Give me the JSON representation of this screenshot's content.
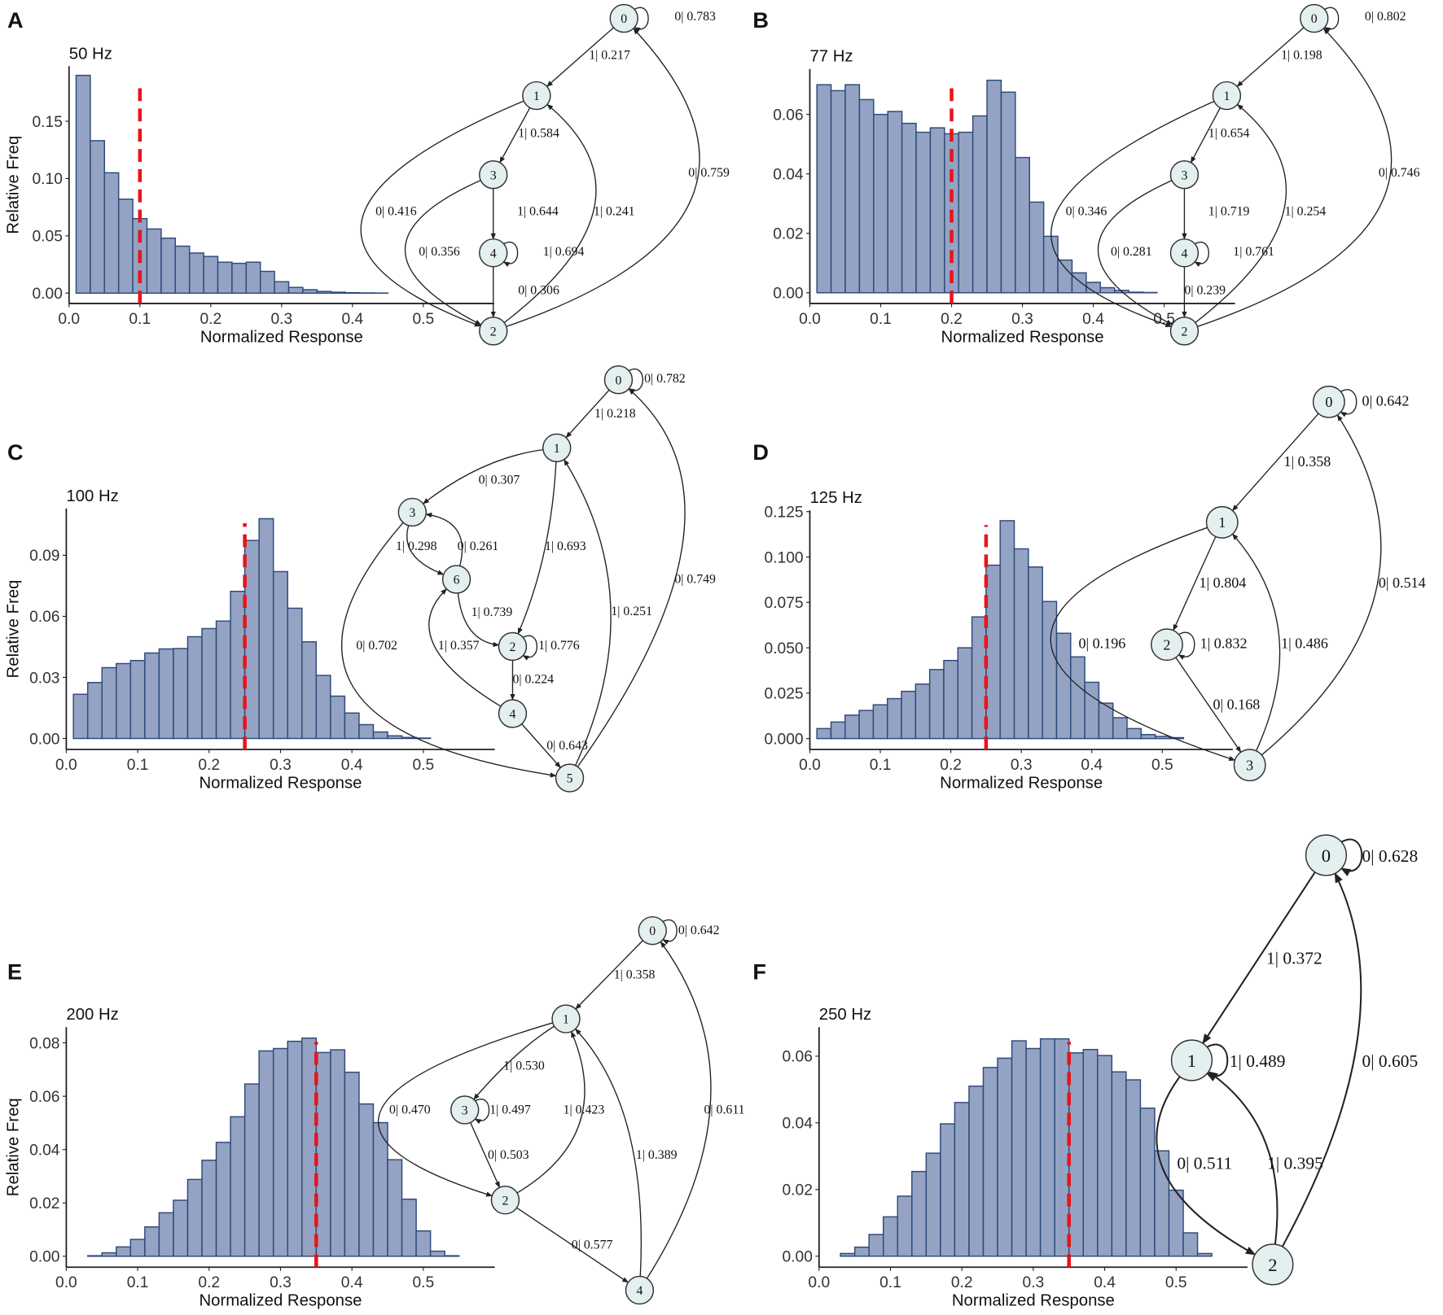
{
  "colors": {
    "bar_fill": "#94a3c4",
    "bar_stroke": "#2f4a7a",
    "threshold": "#e8141c",
    "node_fill": "#e4f0f0",
    "edge": "#222222"
  },
  "chart_data": [
    {
      "type": "bar",
      "letter": "A",
      "title": "50 Hz",
      "xlabel": "Normalized Response",
      "ylabel": "Relative Freq",
      "threshold": 0.1,
      "xlim": [
        0,
        0.6
      ],
      "ylim": [
        -0.009,
        0.198
      ],
      "xticks": [
        0,
        0.1,
        0.2,
        0.3,
        0.4,
        0.5
      ],
      "xtick_labels": [
        "0.0",
        "0.1",
        "0.2",
        "0.3",
        "0.4",
        "0.5"
      ],
      "yticks": [
        0,
        0.05,
        0.1,
        0.15
      ],
      "ytick_labels": [
        "0.00",
        "0.05",
        "0.10",
        "0.15"
      ],
      "bin_start": 0.01,
      "bin_width": 0.02,
      "values": [
        0.19,
        0.133,
        0.105,
        0.082,
        0.065,
        0.056,
        0.048,
        0.041,
        0.035,
        0.032,
        0.027,
        0.026,
        0.027,
        0.019,
        0.01,
        0.005,
        0.003,
        0.0015,
        0.0008,
        0.0004,
        0.0002,
        0.0001,
        0,
        0,
        0,
        0,
        0,
        0,
        0
      ],
      "graph": {
        "nodes": [
          "0",
          "1",
          "2",
          "3",
          "4"
        ],
        "edges": [
          {
            "from": "0",
            "to": "0",
            "label": "0| 0.783"
          },
          {
            "from": "0",
            "to": "1",
            "label": "1| 0.217"
          },
          {
            "from": "1",
            "to": "3",
            "label": "1| 0.584"
          },
          {
            "from": "3",
            "to": "4",
            "label": "1| 0.644"
          },
          {
            "from": "4",
            "to": "4",
            "label": "1| 0.694"
          },
          {
            "from": "4",
            "to": "2",
            "label": "0| 0.306"
          },
          {
            "from": "1",
            "to": "2",
            "label": "0| 0.416"
          },
          {
            "from": "3",
            "to": "2",
            "label": "0| 0.356"
          },
          {
            "from": "2",
            "to": "1",
            "label": "1| 0.241"
          },
          {
            "from": "2",
            "to": "0",
            "label": "0| 0.759"
          }
        ]
      }
    },
    {
      "type": "bar",
      "letter": "B",
      "title": "77 Hz",
      "xlabel": "Normalized Response",
      "ylabel": "",
      "threshold": 0.2,
      "xlim": [
        0,
        0.6
      ],
      "ylim": [
        -0.0036,
        0.0753
      ],
      "xticks": [
        0,
        0.1,
        0.2,
        0.3,
        0.4,
        0.5
      ],
      "xtick_labels": [
        "0.0",
        "0.1",
        "0.2",
        "0.3",
        "0.4",
        "0.5"
      ],
      "yticks": [
        0,
        0.02,
        0.04,
        0.06
      ],
      "ytick_labels": [
        "0.00",
        "0.02",
        "0.04",
        "0.06"
      ],
      "bin_start": 0.01,
      "bin_width": 0.02,
      "values": [
        0.07,
        0.068,
        0.07,
        0.065,
        0.06,
        0.061,
        0.057,
        0.054,
        0.0555,
        0.0535,
        0.054,
        0.0595,
        0.0715,
        0.0675,
        0.0455,
        0.0305,
        0.019,
        0.011,
        0.0067,
        0.0035,
        0.0017,
        0.0008,
        0.0002,
        0.0001,
        0,
        0,
        0,
        0,
        0
      ],
      "graph": {
        "nodes": [
          "0",
          "1",
          "2",
          "3",
          "4"
        ],
        "edges": [
          {
            "from": "0",
            "to": "0",
            "label": "0| 0.802"
          },
          {
            "from": "0",
            "to": "1",
            "label": "1| 0.198"
          },
          {
            "from": "1",
            "to": "3",
            "label": "1| 0.654"
          },
          {
            "from": "3",
            "to": "4",
            "label": "1| 0.719"
          },
          {
            "from": "4",
            "to": "4",
            "label": "1| 0.761"
          },
          {
            "from": "4",
            "to": "2",
            "label": "0| 0.239"
          },
          {
            "from": "1",
            "to": "2",
            "label": "0| 0.346"
          },
          {
            "from": "3",
            "to": "2",
            "label": "0| 0.281"
          },
          {
            "from": "2",
            "to": "1",
            "label": "1| 0.254"
          },
          {
            "from": "2",
            "to": "0",
            "label": "0| 0.746"
          }
        ]
      }
    },
    {
      "type": "bar",
      "letter": "C",
      "title": "100 Hz",
      "xlabel": "Normalized Response",
      "ylabel": "Relative Freq",
      "threshold": 0.25,
      "xlim": [
        0,
        0.6
      ],
      "ylim": [
        -0.0054,
        0.113
      ],
      "xticks": [
        0,
        0.1,
        0.2,
        0.3,
        0.4,
        0.5
      ],
      "xtick_labels": [
        "0.0",
        "0.1",
        "0.2",
        "0.3",
        "0.4",
        "0.5"
      ],
      "yticks": [
        0,
        0.03,
        0.06,
        0.09
      ],
      "ytick_labels": [
        "0.00",
        "0.03",
        "0.06",
        "0.09"
      ],
      "bin_start": 0.01,
      "bin_width": 0.02,
      "values": [
        0.0217,
        0.0275,
        0.0348,
        0.0368,
        0.0383,
        0.042,
        0.044,
        0.0442,
        0.05,
        0.054,
        0.0577,
        0.0723,
        0.0973,
        0.108,
        0.082,
        0.064,
        0.0475,
        0.031,
        0.0208,
        0.0125,
        0.0068,
        0.0032,
        0.0013,
        0.0005,
        0.0002,
        0,
        0,
        0,
        0
      ],
      "graph": {
        "nodes": [
          "0",
          "1",
          "2",
          "3",
          "4",
          "5",
          "6"
        ],
        "edges": [
          {
            "from": "0",
            "to": "0",
            "label": "0| 0.782"
          },
          {
            "from": "0",
            "to": "1",
            "label": "1| 0.218"
          },
          {
            "from": "1",
            "to": "3",
            "label": "0| 0.307"
          },
          {
            "from": "3",
            "to": "6",
            "label": "1| 0.298"
          },
          {
            "from": "6",
            "to": "3",
            "label": "0| 0.261"
          },
          {
            "from": "1",
            "to": "2",
            "label": "1| 0.693"
          },
          {
            "from": "6",
            "to": "2",
            "label": "1| 0.739"
          },
          {
            "from": "2",
            "to": "2",
            "label": "1| 0.776"
          },
          {
            "from": "2",
            "to": "4",
            "label": "0| 0.224"
          },
          {
            "from": "4",
            "to": "6",
            "label": "1| 0.357"
          },
          {
            "from": "4",
            "to": "5",
            "label": "0| 0.643"
          },
          {
            "from": "3",
            "to": "5",
            "label": "0| 0.702"
          },
          {
            "from": "5",
            "to": "1",
            "label": "1| 0.251"
          },
          {
            "from": "5",
            "to": "0",
            "label": "0| 0.749"
          }
        ]
      }
    },
    {
      "type": "bar",
      "letter": "D",
      "title": "125 Hz",
      "xlabel": "Normalized Response",
      "ylabel": "",
      "threshold": 0.25,
      "xlim": [
        0,
        0.6
      ],
      "ylim": [
        -0.006,
        0.1257
      ],
      "xticks": [
        0,
        0.1,
        0.2,
        0.3,
        0.4,
        0.5
      ],
      "xtick_labels": [
        "0.0",
        "0.1",
        "0.2",
        "0.3",
        "0.4",
        "0.5"
      ],
      "yticks": [
        0,
        0.025,
        0.05,
        0.075,
        0.1,
        0.125
      ],
      "ytick_labels": [
        "0.000",
        "0.025",
        "0.050",
        "0.075",
        "0.100",
        "0.125"
      ],
      "bin_start": 0.01,
      "bin_width": 0.02,
      "values": [
        0.0055,
        0.0091,
        0.0129,
        0.0155,
        0.0186,
        0.022,
        0.026,
        0.03,
        0.038,
        0.043,
        0.05,
        0.067,
        0.0955,
        0.12,
        0.1045,
        0.0945,
        0.0755,
        0.058,
        0.045,
        0.031,
        0.0195,
        0.0115,
        0.0055,
        0.0022,
        0.0012,
        0.0005,
        0,
        0,
        0
      ],
      "graph": {
        "nodes": [
          "0",
          "1",
          "2",
          "3"
        ],
        "edges": [
          {
            "from": "0",
            "to": "0",
            "label": "0| 0.642"
          },
          {
            "from": "0",
            "to": "1",
            "label": "1| 0.358"
          },
          {
            "from": "1",
            "to": "2",
            "label": "1| 0.804"
          },
          {
            "from": "2",
            "to": "2",
            "label": "1| 0.832"
          },
          {
            "from": "2",
            "to": "3",
            "label": "0| 0.168"
          },
          {
            "from": "1",
            "to": "3",
            "label": "0| 0.196"
          },
          {
            "from": "3",
            "to": "1",
            "label": "1| 0.486"
          },
          {
            "from": "3",
            "to": "0",
            "label": "0| 0.514"
          }
        ]
      }
    },
    {
      "type": "bar",
      "letter": "E",
      "title": "200 Hz",
      "xlabel": "Normalized Response",
      "ylabel": "Relative Freq",
      "threshold": 0.35,
      "xlim": [
        0,
        0.6
      ],
      "ylim": [
        -0.0041,
        0.0859
      ],
      "xticks": [
        0,
        0.1,
        0.2,
        0.3,
        0.4,
        0.5
      ],
      "xtick_labels": [
        "0.0",
        "0.1",
        "0.2",
        "0.3",
        "0.4",
        "0.5"
      ],
      "yticks": [
        0,
        0.02,
        0.04,
        0.06,
        0.08
      ],
      "ytick_labels": [
        "0.00",
        "0.02",
        "0.04",
        "0.06",
        "0.08"
      ],
      "bin_start": 0.01,
      "bin_width": 0.02,
      "values": [
        0,
        0.0002,
        0.0013,
        0.0035,
        0.0063,
        0.011,
        0.0163,
        0.021,
        0.0288,
        0.036,
        0.0427,
        0.0523,
        0.0646,
        0.077,
        0.0779,
        0.0806,
        0.0818,
        0.0764,
        0.0774,
        0.069,
        0.0571,
        0.0501,
        0.0362,
        0.0214,
        0.0095,
        0.0019,
        0.0002,
        0,
        0
      ],
      "graph": {
        "nodes": [
          "0",
          "1",
          "2",
          "3",
          "4"
        ],
        "edges": [
          {
            "from": "0",
            "to": "0",
            "label": "0| 0.642"
          },
          {
            "from": "0",
            "to": "1",
            "label": "1| 0.358"
          },
          {
            "from": "1",
            "to": "3",
            "label": "1| 0.530"
          },
          {
            "from": "3",
            "to": "3",
            "label": "1| 0.497"
          },
          {
            "from": "3",
            "to": "2",
            "label": "0| 0.503"
          },
          {
            "from": "2",
            "to": "1",
            "label": "1| 0.423"
          },
          {
            "from": "1",
            "to": "2",
            "label": "0| 0.470"
          },
          {
            "from": "2",
            "to": "4",
            "label": "0| 0.577"
          },
          {
            "from": "4",
            "to": "1",
            "label": "1| 0.389"
          },
          {
            "from": "4",
            "to": "0",
            "label": "0| 0.611"
          }
        ]
      }
    },
    {
      "type": "bar",
      "letter": "F",
      "title": "250 Hz",
      "xlabel": "Normalized Response",
      "ylabel": "",
      "threshold": 0.35,
      "xlim": [
        0,
        0.6
      ],
      "ylim": [
        -0.0033,
        0.0687
      ],
      "xticks": [
        0,
        0.1,
        0.2,
        0.3,
        0.4,
        0.5
      ],
      "xtick_labels": [
        "0.0",
        "0.1",
        "0.2",
        "0.3",
        "0.4",
        "0.5"
      ],
      "yticks": [
        0,
        0.02,
        0.04,
        0.06
      ],
      "ytick_labels": [
        "0.00",
        "0.02",
        "0.04",
        "0.06"
      ],
      "bin_start": 0.01,
      "bin_width": 0.02,
      "values": [
        0,
        0.0008,
        0.0027,
        0.0065,
        0.0118,
        0.018,
        0.0254,
        0.0309,
        0.0397,
        0.0461,
        0.051,
        0.0566,
        0.0594,
        0.0646,
        0.0623,
        0.0652,
        0.0652,
        0.061,
        0.062,
        0.0602,
        0.0553,
        0.0529,
        0.0444,
        0.0316,
        0.0198,
        0.007,
        0.0008,
        0,
        0
      ],
      "graph": {
        "nodes": [
          "0",
          "1",
          "2"
        ],
        "edges": [
          {
            "from": "0",
            "to": "0",
            "label": "0| 0.628"
          },
          {
            "from": "0",
            "to": "1",
            "label": "1| 0.372"
          },
          {
            "from": "1",
            "to": "1",
            "label": "1| 0.489"
          },
          {
            "from": "1",
            "to": "2",
            "label": "0| 0.511"
          },
          {
            "from": "2",
            "to": "1",
            "label": "1| 0.395"
          },
          {
            "from": "2",
            "to": "0",
            "label": "0| 0.605"
          }
        ]
      }
    }
  ]
}
